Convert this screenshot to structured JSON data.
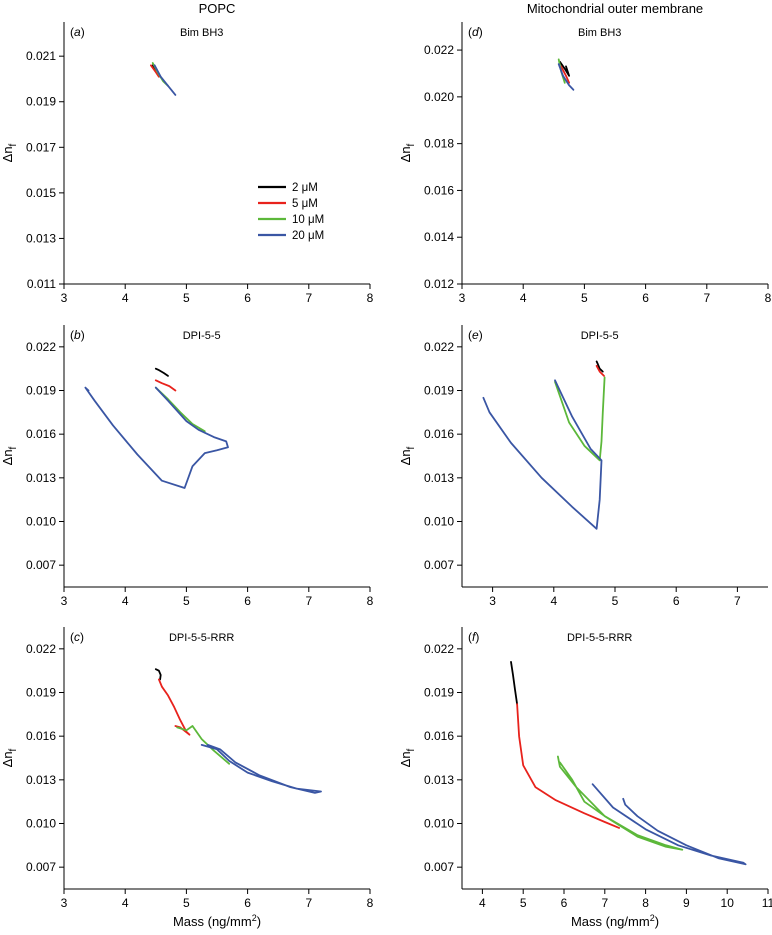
{
  "figure": {
    "left_column_title": "POPC",
    "right_column_title": "Mitochondrial outer membrane",
    "y_axis_symbol": "Δn",
    "y_axis_subscript": "f",
    "x_axis_label_prefix": "Mass (ng/mm",
    "x_axis_label_superscript": "2",
    "x_axis_label_suffix": ")"
  },
  "legend": [
    {
      "label": "2 μM",
      "color": "#000000"
    },
    {
      "label": "5 μM",
      "color": "#e8221c"
    },
    {
      "label": "10 μM",
      "color": "#5cb83a"
    },
    {
      "label": "20 μM",
      "color": "#3a56a4"
    }
  ],
  "chart_data": [
    {
      "type": "line",
      "panel": "a",
      "title": "Bim BH3",
      "xlim": [
        3,
        8
      ],
      "ylim": [
        0.011,
        0.0225
      ],
      "xticks": [
        3,
        4,
        5,
        6,
        7,
        8
      ],
      "yticks": [
        0.011,
        0.013,
        0.015,
        0.017,
        0.019,
        0.021
      ],
      "tick_decimals": 3,
      "show_legend": true,
      "series": [
        {
          "name": "2 μM",
          "x": [
            4.45,
            4.5,
            4.48
          ],
          "y": [
            0.0206,
            0.0204,
            0.0205
          ]
        },
        {
          "name": "5 μM",
          "x": [
            4.42,
            4.5,
            4.55
          ],
          "y": [
            0.0206,
            0.0203,
            0.0201
          ]
        },
        {
          "name": "10 μM",
          "x": [
            4.45,
            4.55,
            4.62,
            4.7
          ],
          "y": [
            0.0207,
            0.0202,
            0.0199,
            0.0197
          ]
        },
        {
          "name": "20 μM",
          "x": [
            4.48,
            4.58,
            4.7,
            4.82
          ],
          "y": [
            0.0206,
            0.0201,
            0.0197,
            0.0193
          ]
        }
      ]
    },
    {
      "type": "line",
      "panel": "b",
      "title": "DPI-5-5",
      "xlim": [
        3,
        8
      ],
      "ylim": [
        0.0055,
        0.0235
      ],
      "xticks": [
        3,
        4,
        5,
        6,
        7,
        8
      ],
      "yticks": [
        0.007,
        0.01,
        0.013,
        0.016,
        0.019,
        0.022
      ],
      "tick_decimals": 3,
      "show_legend": false,
      "series": [
        {
          "name": "2 μM",
          "x": [
            4.5,
            4.55,
            4.63,
            4.7
          ],
          "y": [
            0.0205,
            0.0204,
            0.0202,
            0.02
          ]
        },
        {
          "name": "5 μM",
          "x": [
            4.5,
            4.6,
            4.72,
            4.82
          ],
          "y": [
            0.0197,
            0.0195,
            0.0193,
            0.019
          ]
        },
        {
          "name": "10 μM",
          "x": [
            4.5,
            4.7,
            4.9,
            5.1,
            5.3
          ],
          "y": [
            0.0192,
            0.0184,
            0.0175,
            0.0167,
            0.0162
          ]
        },
        {
          "name": "20 μM",
          "x": [
            3.4,
            3.35,
            3.5,
            3.8,
            4.2,
            4.6,
            4.97,
            5.1,
            5.3,
            5.5,
            5.68,
            5.65,
            5.45,
            5.2,
            5.0,
            4.85,
            4.7,
            4.5
          ],
          "y": [
            0.019,
            0.0192,
            0.0183,
            0.0166,
            0.0146,
            0.0128,
            0.0123,
            0.0138,
            0.0147,
            0.0149,
            0.0151,
            0.0155,
            0.0158,
            0.0163,
            0.0169,
            0.0176,
            0.0183,
            0.0192
          ]
        }
      ]
    },
    {
      "type": "line",
      "panel": "c",
      "title": "DPI-5-5-RRR",
      "xlim": [
        3,
        8
      ],
      "ylim": [
        0.0055,
        0.0235
      ],
      "xticks": [
        3,
        4,
        5,
        6,
        7,
        8
      ],
      "yticks": [
        0.007,
        0.01,
        0.013,
        0.016,
        0.019,
        0.022
      ],
      "tick_decimals": 3,
      "show_legend": false,
      "series": [
        {
          "name": "2 μM",
          "x": [
            4.5,
            4.55,
            4.58,
            4.57
          ],
          "y": [
            0.0206,
            0.0205,
            0.0202,
            0.0199
          ]
        },
        {
          "name": "5 μM",
          "x": [
            4.55,
            4.6,
            4.7,
            4.8,
            4.9,
            5.0,
            5.05,
            4.9,
            4.82
          ],
          "y": [
            0.0199,
            0.0194,
            0.0188,
            0.018,
            0.0171,
            0.0163,
            0.0161,
            0.0166,
            0.0167
          ]
        },
        {
          "name": "10 μM",
          "x": [
            4.85,
            5.0,
            5.1,
            5.25,
            5.45,
            5.7
          ],
          "y": [
            0.0166,
            0.0164,
            0.0167,
            0.0158,
            0.015,
            0.0141
          ]
        },
        {
          "name": "20 μM",
          "x": [
            5.25,
            5.5,
            5.7,
            6.0,
            6.4,
            6.8,
            7.2,
            7.1,
            6.7,
            6.2,
            5.8,
            5.55,
            5.35
          ],
          "y": [
            0.0154,
            0.0151,
            0.0143,
            0.0135,
            0.0129,
            0.0124,
            0.0122,
            0.0121,
            0.0125,
            0.0133,
            0.0142,
            0.0151,
            0.0154
          ]
        }
      ]
    },
    {
      "type": "line",
      "panel": "d",
      "title": "Bim BH3",
      "xlim": [
        3,
        8
      ],
      "ylim": [
        0.012,
        0.0232
      ],
      "xticks": [
        3,
        4,
        5,
        6,
        7,
        8
      ],
      "yticks": [
        0.012,
        0.014,
        0.016,
        0.018,
        0.02,
        0.022
      ],
      "tick_decimals": 3,
      "show_legend": false,
      "series": [
        {
          "name": "2 μM",
          "x": [
            4.6,
            4.68,
            4.75,
            4.7
          ],
          "y": [
            0.0215,
            0.0212,
            0.0209,
            0.0213
          ]
        },
        {
          "name": "5 μM",
          "x": [
            4.62,
            4.7,
            4.75
          ],
          "y": [
            0.0213,
            0.0209,
            0.0206
          ]
        },
        {
          "name": "10 μM",
          "x": [
            4.58,
            4.62,
            4.68
          ],
          "y": [
            0.0216,
            0.0211,
            0.0206
          ]
        },
        {
          "name": "20 μM",
          "x": [
            4.58,
            4.65,
            4.75,
            4.82
          ],
          "y": [
            0.0214,
            0.0209,
            0.0205,
            0.0203
          ]
        }
      ]
    },
    {
      "type": "line",
      "panel": "e",
      "title": "DPI-5-5",
      "xlim": [
        2.5,
        7.5
      ],
      "ylim": [
        0.0055,
        0.0235
      ],
      "xticks": [
        3,
        4,
        5,
        6,
        7
      ],
      "yticks": [
        0.007,
        0.01,
        0.013,
        0.016,
        0.019,
        0.022
      ],
      "tick_decimals": 3,
      "show_legend": false,
      "series": [
        {
          "name": "2 μM",
          "x": [
            4.7,
            4.72,
            4.75,
            4.8
          ],
          "y": [
            0.021,
            0.0208,
            0.0205,
            0.0203
          ]
        },
        {
          "name": "5 μM",
          "x": [
            4.7,
            4.75,
            4.82
          ],
          "y": [
            0.0207,
            0.0203,
            0.02
          ]
        },
        {
          "name": "10 μM",
          "x": [
            4.83,
            4.8,
            4.78,
            4.75,
            4.5,
            4.25,
            4.02
          ],
          "y": [
            0.0199,
            0.0175,
            0.0155,
            0.0142,
            0.0152,
            0.0168,
            0.0196
          ]
        },
        {
          "name": "20 μM",
          "x": [
            4.02,
            4.3,
            4.6,
            4.78,
            4.75,
            4.7,
            4.3,
            3.8,
            3.3,
            2.95,
            2.85
          ],
          "y": [
            0.0197,
            0.0172,
            0.015,
            0.0142,
            0.0115,
            0.0095,
            0.011,
            0.013,
            0.0154,
            0.0175,
            0.0185
          ]
        }
      ]
    },
    {
      "type": "line",
      "panel": "f",
      "title": "DPI-5-5-RRR",
      "xlim": [
        3.5,
        11
      ],
      "ylim": [
        0.0055,
        0.0235
      ],
      "xticks": [
        4,
        5,
        6,
        7,
        8,
        9,
        10,
        11
      ],
      "yticks": [
        0.007,
        0.01,
        0.013,
        0.016,
        0.019,
        0.022
      ],
      "tick_decimals": 3,
      "show_legend": false,
      "series": [
        {
          "name": "2 μM",
          "x": [
            4.7,
            4.75,
            4.8,
            4.85
          ],
          "y": [
            0.0211,
            0.0202,
            0.0192,
            0.0182
          ]
        },
        {
          "name": "5 μM",
          "x": [
            4.85,
            4.9,
            5.0,
            5.3,
            5.8,
            6.5,
            7.0,
            7.35
          ],
          "y": [
            0.0182,
            0.016,
            0.014,
            0.0125,
            0.0116,
            0.0107,
            0.0101,
            0.0097
          ]
        },
        {
          "name": "10 μM",
          "x": [
            5.85,
            5.9,
            6.3,
            7.0,
            7.8,
            8.5,
            8.9,
            8.5,
            7.8,
            7.0,
            6.5,
            6.2,
            5.9
          ],
          "y": [
            0.0146,
            0.0139,
            0.0125,
            0.0105,
            0.0091,
            0.0084,
            0.0082,
            0.0085,
            0.0092,
            0.0105,
            0.0115,
            0.013,
            0.0142
          ]
        },
        {
          "name": "20 μM",
          "x": [
            6.7,
            7.2,
            8.0,
            8.8,
            9.6,
            10.4,
            10.45,
            9.8,
            9.0,
            8.3,
            7.8,
            7.5,
            7.45
          ],
          "y": [
            0.0127,
            0.0111,
            0.0096,
            0.0085,
            0.0078,
            0.0073,
            0.0072,
            0.0076,
            0.0085,
            0.0095,
            0.0105,
            0.0113,
            0.0117
          ]
        }
      ]
    }
  ]
}
